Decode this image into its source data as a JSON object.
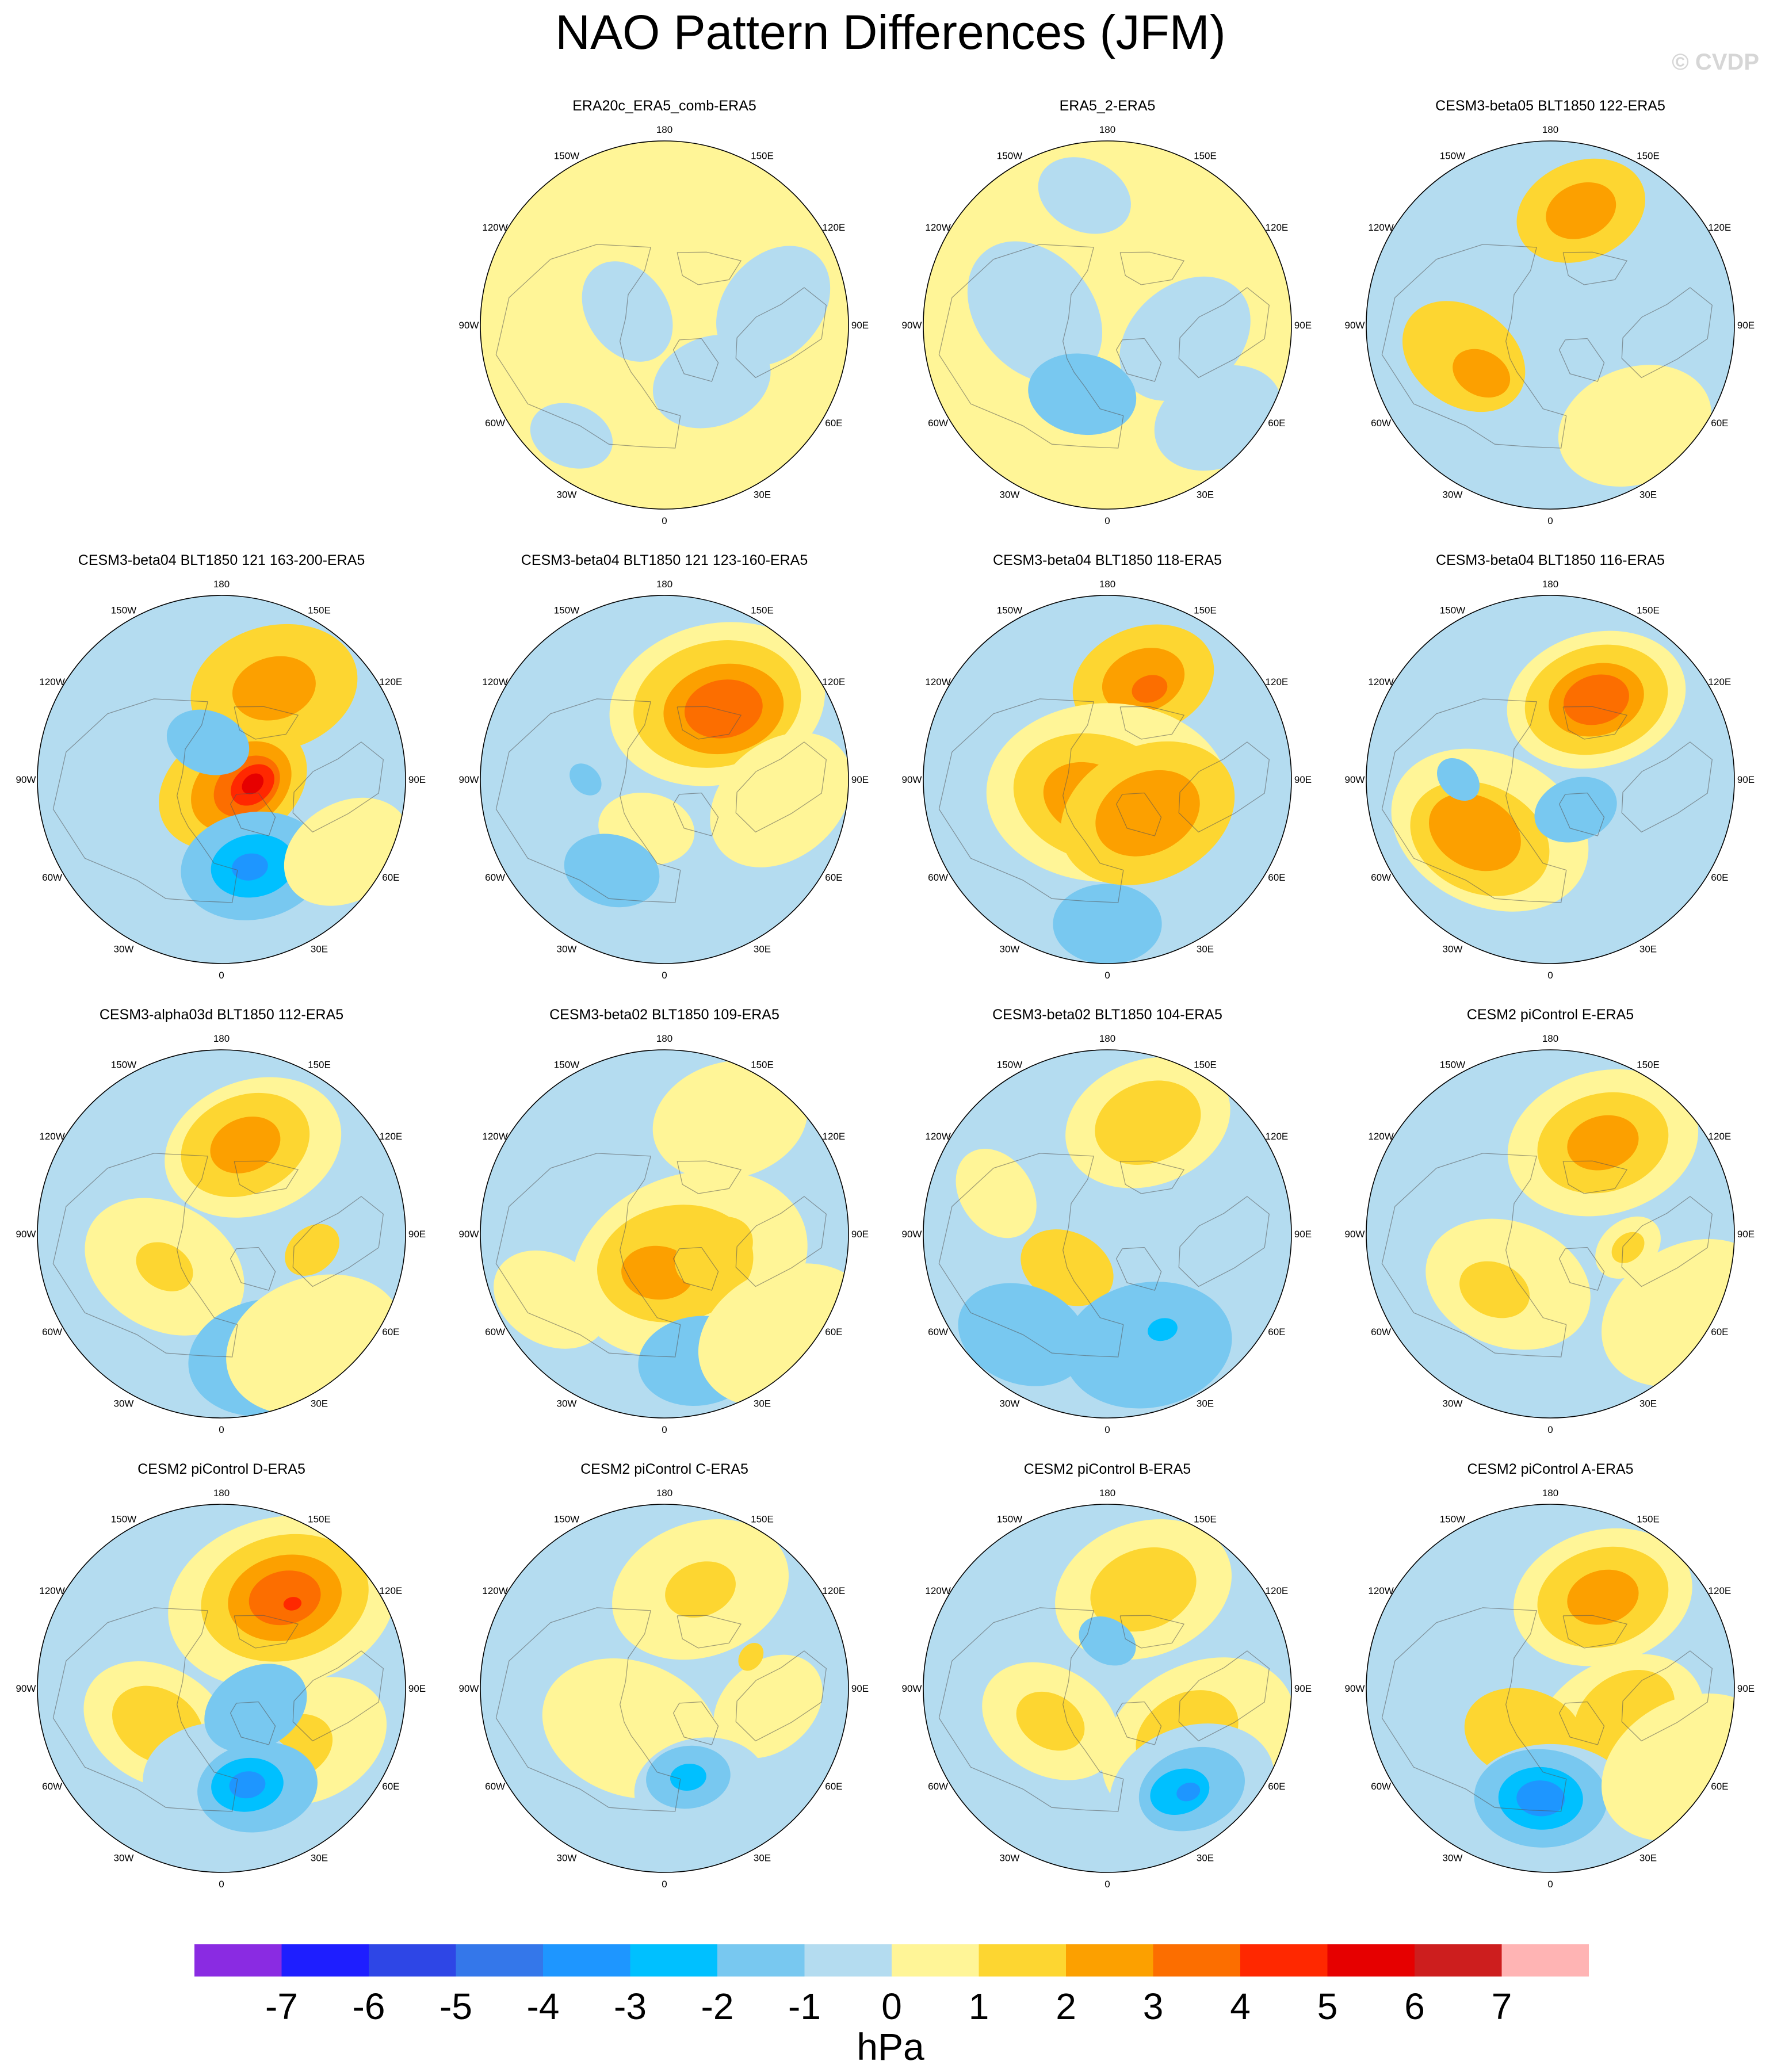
{
  "title": "NAO Pattern Differences (JFM)",
  "watermark": "© CVDP",
  "chart_data": {
    "type": "contour-map",
    "projection": "north-polar-stereographic",
    "lon_labels": [
      "180",
      "150E",
      "120E",
      "90E",
      "60E",
      "30E",
      "0",
      "30W",
      "60W",
      "90W",
      "120W",
      "150W"
    ],
    "colorbar": {
      "levels": [
        -7,
        -6,
        -5,
        -4,
        -3,
        -2,
        -1,
        0,
        1,
        2,
        3,
        4,
        5,
        6,
        7
      ],
      "colors": [
        "#8a2be2",
        "#1e1eff",
        "#2e46e6",
        "#3477ea",
        "#1e96ff",
        "#00c0ff",
        "#78c8f0",
        "#b4dcf0",
        "#fff597",
        "#fdd631",
        "#fca000",
        "#fc6e00",
        "#ff2800",
        "#e60000",
        "#cd1e1e",
        "#ffb4b4"
      ],
      "units": "hPa"
    },
    "panels": [
      {
        "title": "",
        "empty": true
      },
      {
        "title": "ERA20c_ERA5_comb-ERA5",
        "base": 0,
        "blobs": [
          [
            -40,
            62,
            20,
            -1
          ],
          [
            -100,
            48,
            22,
            -1
          ],
          [
            110,
            75,
            18,
            -1
          ],
          [
            40,
            35,
            14,
            -1
          ]
        ]
      },
      {
        "title": "ERA5_2-ERA5",
        "base": 0,
        "blobs": [
          [
            100,
            62,
            26,
            -1
          ],
          [
            -80,
            60,
            24,
            -1
          ],
          [
            20,
            62,
            18,
            -2
          ],
          [
            -50,
            35,
            22,
            -1
          ],
          [
            170,
            40,
            16,
            -1
          ]
        ]
      },
      {
        "title": "CESM3-beta05 BLT1850 122-ERA5",
        "base": -1,
        "blobs": [
          [
            -165,
            45,
            22,
            1
          ],
          [
            -165,
            45,
            12,
            2
          ],
          [
            70,
            55,
            22,
            1
          ],
          [
            55,
            58,
            10,
            2
          ],
          [
            -40,
            40,
            26,
            0
          ]
        ]
      },
      {
        "title": "CESM3-beta04 BLT1850 121 163-200-ERA5",
        "base": -1,
        "blobs": [
          [
            -150,
            50,
            28,
            1
          ],
          [
            -150,
            50,
            14,
            2
          ],
          [
            -60,
            85,
            26,
            1
          ],
          [
            -70,
            82,
            18,
            2
          ],
          [
            -75,
            80,
            12,
            3
          ],
          [
            -80,
            78,
            8,
            4
          ],
          [
            -82,
            78,
            4,
            5
          ],
          [
            -20,
            55,
            24,
            -2
          ],
          [
            -20,
            55,
            14,
            -3
          ],
          [
            -18,
            55,
            6,
            -4
          ],
          [
            160,
            75,
            14,
            -2
          ],
          [
            -60,
            35,
            22,
            0
          ]
        ]
      },
      {
        "title": "CESM3-beta04 BLT1850 121 123-160-ERA5",
        "base": -1,
        "blobs": [
          [
            -145,
            55,
            36,
            0
          ],
          [
            -145,
            55,
            28,
            1
          ],
          [
            -140,
            55,
            20,
            2
          ],
          [
            -140,
            55,
            13,
            3
          ],
          [
            -80,
            45,
            26,
            0
          ],
          [
            20,
            70,
            16,
            0
          ],
          [
            30,
            50,
            16,
            -2
          ],
          [
            90,
            60,
            6,
            -2
          ]
        ]
      },
      {
        "title": "CESM3-beta04 BLT1850 118-ERA5",
        "base": -1,
        "blobs": [
          [
            -160,
            50,
            24,
            1
          ],
          [
            -160,
            50,
            14,
            2
          ],
          [
            -155,
            52,
            6,
            3
          ],
          [
            0,
            85,
            40,
            0
          ],
          [
            30,
            82,
            28,
            1
          ],
          [
            40,
            80,
            16,
            2
          ],
          [
            -50,
            70,
            30,
            1
          ],
          [
            -50,
            70,
            18,
            2
          ],
          [
            0,
            35,
            18,
            -2
          ]
        ]
      },
      {
        "title": "CESM3-beta04 BLT1850 116-ERA5",
        "base": -1,
        "blobs": [
          [
            -150,
            55,
            30,
            0
          ],
          [
            -150,
            55,
            24,
            1
          ],
          [
            -150,
            55,
            16,
            2
          ],
          [
            -150,
            55,
            11,
            3
          ],
          [
            50,
            60,
            34,
            0
          ],
          [
            50,
            55,
            24,
            1
          ],
          [
            55,
            55,
            16,
            2
          ],
          [
            -40,
            75,
            14,
            -2
          ],
          [
            90,
            55,
            8,
            -2
          ]
        ]
      },
      {
        "title": "CESM3-alpha03d BLT1850 112-ERA5",
        "base": -1,
        "blobs": [
          [
            -160,
            55,
            30,
            0
          ],
          [
            -165,
            55,
            22,
            1
          ],
          [
            -165,
            55,
            12,
            2
          ],
          [
            60,
            65,
            28,
            0
          ],
          [
            60,
            65,
            10,
            1
          ],
          [
            -80,
            55,
            10,
            1
          ],
          [
            -20,
            40,
            26,
            -2
          ],
          [
            -40,
            35,
            30,
            0
          ]
        ]
      },
      {
        "title": "CESM3-beta02 BLT1850 109-ERA5",
        "base": -1,
        "blobs": [
          [
            -150,
            40,
            26,
            0
          ],
          [
            -40,
            75,
            40,
            0
          ],
          [
            -20,
            78,
            26,
            1
          ],
          [
            10,
            75,
            12,
            2
          ],
          [
            -70,
            70,
            14,
            1
          ],
          [
            -15,
            40,
            20,
            -2
          ],
          [
            -50,
            30,
            30,
            0
          ],
          [
            60,
            40,
            20,
            0
          ]
        ]
      },
      {
        "title": "CESM3-beta02 BLT1850 104-ERA5",
        "base": -1,
        "blobs": [
          [
            -160,
            45,
            28,
            0
          ],
          [
            -160,
            45,
            18,
            1
          ],
          [
            50,
            70,
            16,
            1
          ],
          [
            110,
            45,
            16,
            0
          ],
          [
            -20,
            45,
            28,
            -2
          ],
          [
            40,
            40,
            22,
            -2
          ],
          [
            -30,
            48,
            5,
            -3
          ]
        ]
      },
      {
        "title": "CESM2 piControl E-ERA5",
        "base": -1,
        "blobs": [
          [
            -150,
            50,
            32,
            0
          ],
          [
            -150,
            50,
            22,
            1
          ],
          [
            -150,
            50,
            12,
            2
          ],
          [
            40,
            65,
            28,
            0
          ],
          [
            45,
            60,
            12,
            1
          ],
          [
            -60,
            30,
            30,
            0
          ],
          [
            -80,
            60,
            12,
            0
          ],
          [
            -80,
            60,
            6,
            1
          ]
        ]
      },
      {
        "title": "CESM2 piControl D-ERA5",
        "base": -1,
        "blobs": [
          [
            -145,
            50,
            38,
            0
          ],
          [
            -145,
            48,
            28,
            1
          ],
          [
            -145,
            48,
            19,
            2
          ],
          [
            -145,
            48,
            12,
            3
          ],
          [
            -140,
            48,
            3,
            4
          ],
          [
            60,
            62,
            26,
            0
          ],
          [
            60,
            62,
            16,
            1
          ],
          [
            -60,
            50,
            26,
            0
          ],
          [
            -50,
            55,
            14,
            1
          ],
          [
            0,
            55,
            26,
            -1
          ],
          [
            -20,
            50,
            20,
            -2
          ],
          [
            -15,
            52,
            12,
            -3
          ],
          [
            -15,
            52,
            6,
            -4
          ],
          [
            -60,
            75,
            18,
            -2
          ]
        ]
      },
      {
        "title": "CESM2 piControl C-ERA5",
        "base": -1,
        "blobs": [
          [
            -160,
            50,
            30,
            0
          ],
          [
            -160,
            50,
            12,
            1
          ],
          [
            40,
            70,
            30,
            0
          ],
          [
            -80,
            50,
            20,
            0
          ],
          [
            -20,
            50,
            22,
            -1
          ],
          [
            -15,
            55,
            14,
            -2
          ],
          [
            -15,
            55,
            6,
            -3
          ],
          [
            -110,
            55,
            5,
            1
          ]
        ]
      },
      {
        "title": "CESM2 piControl B-ERA5",
        "base": -1,
        "blobs": [
          [
            -160,
            50,
            30,
            0
          ],
          [
            -160,
            50,
            18,
            1
          ],
          [
            -60,
            50,
            34,
            0
          ],
          [
            -60,
            55,
            18,
            1
          ],
          [
            60,
            65,
            24,
            0
          ],
          [
            60,
            65,
            12,
            1
          ],
          [
            -40,
            40,
            28,
            -1
          ],
          [
            -40,
            40,
            18,
            -2
          ],
          [
            -35,
            42,
            10,
            -3
          ],
          [
            -38,
            40,
            4,
            -4
          ],
          [
            180,
            72,
            10,
            -2
          ]
        ]
      },
      {
        "title": "CESM2 piControl A-ERA5",
        "base": -1,
        "blobs": [
          [
            -150,
            50,
            30,
            0
          ],
          [
            -150,
            50,
            22,
            1
          ],
          [
            -150,
            50,
            12,
            2
          ],
          [
            -60,
            60,
            30,
            0
          ],
          [
            -70,
            60,
            18,
            1
          ],
          [
            30,
            70,
            20,
            1
          ],
          [
            0,
            45,
            28,
            -1
          ],
          [
            5,
            48,
            22,
            -2
          ],
          [
            5,
            48,
            14,
            -3
          ],
          [
            5,
            48,
            8,
            -4
          ],
          [
            -60,
            30,
            30,
            0
          ]
        ]
      }
    ]
  }
}
